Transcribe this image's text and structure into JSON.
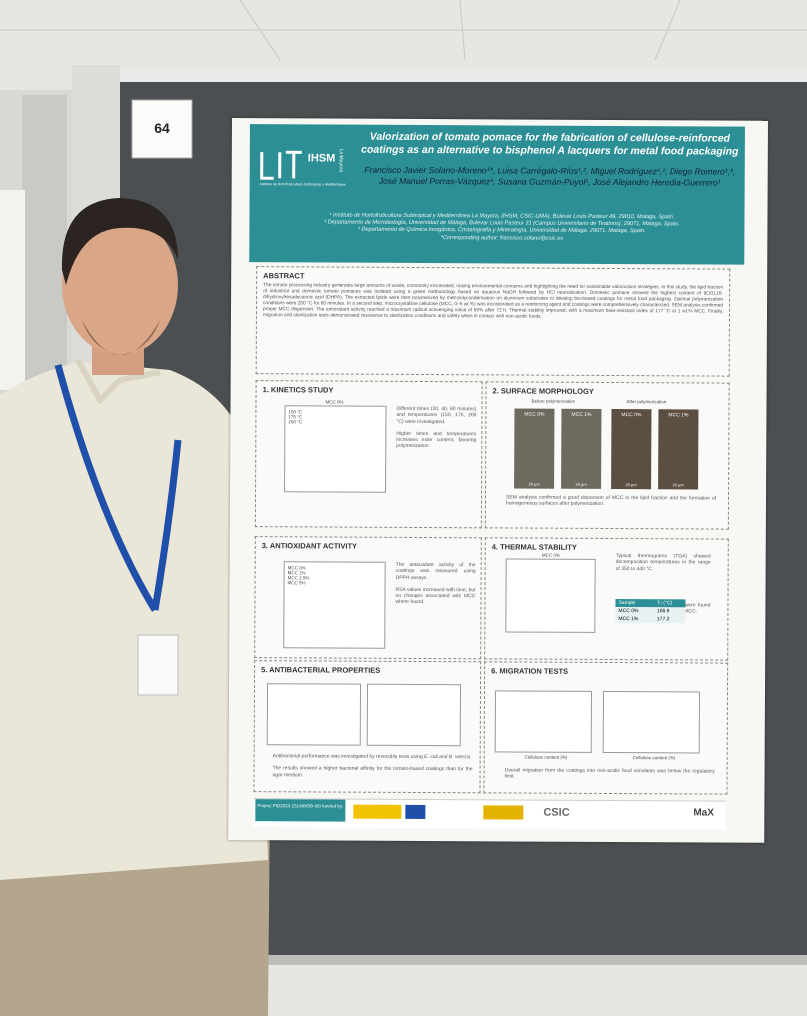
{
  "board_number": "64",
  "poster": {
    "title": "Valorization of tomato pomace for the fabrication of cellulose-reinforced coatings as an alternative to bisphenol A lacquers for metal food packaging",
    "logo": {
      "name": "IHSM",
      "place": "La Mayora",
      "caption": "Instituto de Hortofruticultura Subtropical y Mediterránea"
    },
    "authors": "Francisco Javier Solano-Moreno¹*, Luisa Carrégalo-Ríos¹,², Miguel Rodríguez¹,², Diego Romero¹,², José Manuel Porras-Vázquez³, Susana Guzmán-Puyol¹, José Alejandro Heredia-Guerrero¹",
    "affiliations": [
      "¹ Instituto de Hortofruticultura Subtropical y Mediterránea La Mayora, (IHSM, CSIC-UMA), Bulevar Louis Pasteur 49, 29010, Malaga, Spain.",
      "² Departamento de Microbiología, Universidad de Málaga, Bulevar Louis Pasteur 31 (Campus Universitario de Teatinos), 29071, Malaga, Spain.",
      "³ Departamento de Química Inorgánica, Cristalografía y Mineralogía, Universidad de Málaga, 29071, Malaga, Spain.",
      "*Corresponding author: francisco.solano@csic.es"
    ],
    "abstract": {
      "heading": "ABSTRACT",
      "text": "The tomato processing industry generates large amounts of waste, commonly incinerated, raising environmental concerns and highlighting the need for sustainable valorization strategies. In this study, the lipid fraction of industrial and domestic tomato pomaces was isolated using a green methodology based on aqueous NaOH followed by HCl neutralization. Domestic pomace showed the highest content of 9(10),16-dihydroxyhexadecanoic acid (DHPA). The extracted lipids were then polymerized by melt-polycondensation on aluminum substrates to develop bio-based coatings for metal food packaging. Optimal polymerization conditions were 200 °C for 60 minutes. In a second step, microcrystalline cellulose (MCC, 0–5 wt.%) was incorporated as a reinforcing agent and coatings were comprehensively characterized. SEM analysis confirmed proper MCC dispersion. The antioxidant activity reached a maximum radical scavenging value of 55% after 72 h. Thermal stability improved, with a maximum heat-resistant index of 177 °C at 1 wt.% MCC. Finally, migration and sterilization tests demonstrated resistance to sterilization conditions and safety when in contact with non-acidic foods."
    },
    "sections": [
      {
        "heading": "1. KINETICS STUDY",
        "bullets": [
          "Different times (20, 40, 60 minutes) and temperatures (150, 175, 200 °C) were investigated.",
          "Higher times and temperatures increases ester content, favoring polymerization."
        ],
        "legend": [
          "150 °C",
          "175 °C",
          "200 °C"
        ],
        "plot_title": "MCC 0%"
      },
      {
        "heading": "2. SURFACE MORPHOLOGY",
        "labels": [
          "Before polymerization",
          "After polymerization"
        ],
        "images": [
          "MCC 0%",
          "MCC 1%",
          "MCC 0%",
          "MCC 1%"
        ],
        "scale": "20 µm",
        "bullets": [
          "SEM analysis confirmed a good dispersion of MCC in the lipid fraction and the formation of homogeneous surfaces after polymerization."
        ]
      },
      {
        "heading": "3. ANTIOXIDANT ACTIVITY",
        "bullets": [
          "The antioxidant activity of the coatings was measured using DPPH assays.",
          "RSA values increased with time, but no changes associated with MCC where found."
        ],
        "legend": [
          "MCC 0%",
          "MCC 1%",
          "MCC 2.5%",
          "MCC 5%"
        ]
      },
      {
        "heading": "4. THERMAL STABILITY",
        "bullets": [
          "Typical thermograms (TGA) showed decomposition temperatures in the range of 350 to 440 °C.",
          "Heat resistance index values were found to increase with the addition of MCC."
        ],
        "plot_title": "MCC 0%",
        "table": {
          "header": [
            "Sample",
            "Tₛ (°C)"
          ],
          "rows": [
            [
              "MCC 0%",
              166.9
            ],
            [
              "MCC 1%",
              177.2
            ]
          ]
        }
      },
      {
        "heading": "5. ANTIBACTERIAL PROPERTIES",
        "bullets": [
          "Antibacterial performance was investigated by reversibly tests using E. coli and B. velezis.",
          "The results showed a higher bacterial affinity for the tomato-based coatings than for the agar medium."
        ]
      },
      {
        "heading": "6. MIGRATION TESTS",
        "bullets": [
          "Overall migration from the coatings into non-acidic food simulants was below the regulatory limit."
        ],
        "x_label": "Cellulose content (%)"
      }
    ],
    "footer": {
      "funding": "Project PID2023-151489OB-I00 funded by:",
      "logos": [
        "CSIC",
        "MaX"
      ]
    }
  }
}
